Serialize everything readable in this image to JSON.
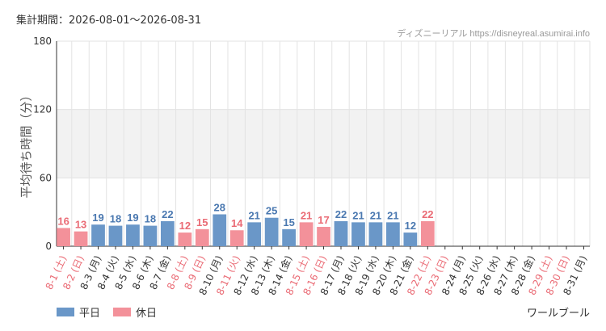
{
  "header": {
    "period": "集計期間：2026-08-01〜2026-08-31",
    "source": "ディズニーリアル https://disneyreal.asumirai.info"
  },
  "footer": {
    "place": "ワールブール"
  },
  "legend": [
    {
      "name": "平日",
      "color": "#6a97c8"
    },
    {
      "name": "休日",
      "color": "#f3919a"
    }
  ],
  "colors": {
    "weekday_bar": "#6a97c8",
    "holiday_bar": "#f3919a",
    "weekday_label": "#4a78b0",
    "holiday_label": "#ea6a74",
    "weekday_tick": "#333333",
    "holiday_tick": "#ea6a74",
    "band": "#f2f2f2",
    "grid": "#e3e3e3"
  },
  "chart_data": {
    "type": "bar",
    "ylabel": "平均待ち時間（分）",
    "ylim": [
      0,
      180
    ],
    "yticks": [
      0,
      60,
      120,
      180
    ],
    "shaded_bands": [
      [
        60,
        120
      ]
    ],
    "grid": true,
    "legend_position": "bottom-left",
    "categories": [
      "8-1 (土)",
      "8-2 (日)",
      "8-3 (月)",
      "8-4 (火)",
      "8-5 (水)",
      "8-6 (木)",
      "8-7 (金)",
      "8-8 (土)",
      "8-9 (日)",
      "8-10 (月)",
      "8-11 (火)",
      "8-12 (水)",
      "8-13 (木)",
      "8-14 (金)",
      "8-15 (土)",
      "8-16 (日)",
      "8-17 (月)",
      "8-18 (火)",
      "8-19 (水)",
      "8-20 (木)",
      "8-21 (金)",
      "8-22 (土)",
      "8-23 (日)",
      "8-24 (月)",
      "8-25 (火)",
      "8-26 (水)",
      "8-27 (木)",
      "8-28 (金)",
      "8-29 (土)",
      "8-30 (日)",
      "8-31 (月)"
    ],
    "values": [
      16,
      13,
      19,
      18,
      19,
      18,
      22,
      12,
      15,
      28,
      14,
      21,
      25,
      15,
      21,
      17,
      22,
      21,
      21,
      21,
      12,
      22,
      null,
      null,
      null,
      null,
      null,
      null,
      null,
      null,
      null
    ],
    "holiday": [
      true,
      true,
      false,
      false,
      false,
      false,
      false,
      true,
      true,
      false,
      true,
      false,
      false,
      false,
      true,
      true,
      false,
      false,
      false,
      false,
      false,
      true,
      true,
      false,
      false,
      false,
      false,
      false,
      true,
      true,
      false
    ],
    "series": [
      {
        "name": "平日"
      },
      {
        "name": "休日"
      }
    ]
  }
}
